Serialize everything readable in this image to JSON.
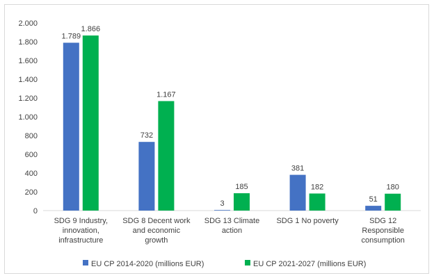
{
  "chart_data": {
    "type": "bar",
    "categories": [
      [
        "SDG 9 Industry,",
        "innovation,",
        "infrastructure"
      ],
      [
        "SDG 8 Decent work",
        "and economic",
        "growth"
      ],
      [
        "SDG 13 Climate",
        "action"
      ],
      [
        "SDG 1 No poverty"
      ],
      [
        "SDG 12",
        "Responsible",
        "consumption"
      ]
    ],
    "series": [
      {
        "name": "EU CP 2014-2020 (millions EUR)",
        "color": "#4472c4",
        "values": [
          1789,
          732,
          3,
          381,
          51
        ],
        "labels": [
          "1.789",
          "732",
          "3",
          "381",
          "51"
        ]
      },
      {
        "name": "EU CP 2021-2027 (millions EUR)",
        "color": "#00b050",
        "values": [
          1866,
          1167,
          185,
          182,
          180
        ],
        "labels": [
          "1.866",
          "1.167",
          "185",
          "182",
          "180"
        ]
      }
    ],
    "yticks": [
      0,
      200,
      400,
      600,
      800,
      1000,
      1200,
      1400,
      1600,
      1800,
      2000
    ],
    "ytick_labels": [
      "0",
      "200",
      "400",
      "600",
      "800",
      "1.000",
      "1.200",
      "1.400",
      "1.600",
      "1.800",
      "2.000"
    ],
    "ylim": [
      0,
      2000
    ],
    "grid": false,
    "legend_position": "bottom",
    "axis_color": "#d9d9d9",
    "text_color": "#404040"
  }
}
